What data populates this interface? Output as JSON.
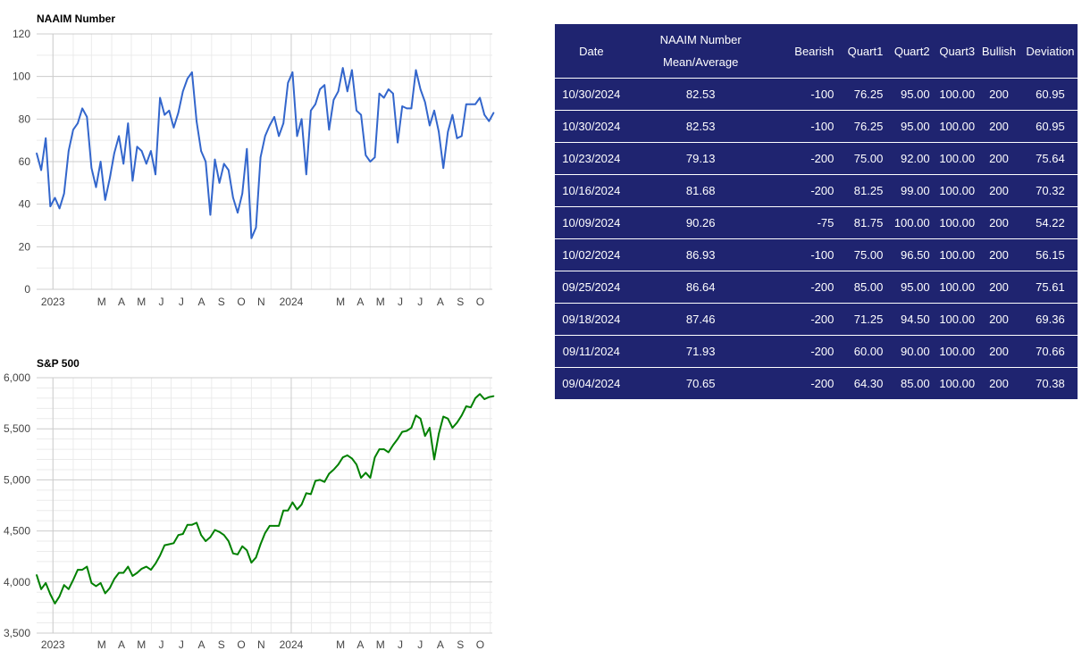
{
  "chart_data": [
    {
      "type": "line",
      "title": "NAAIM Number",
      "ylim": [
        0,
        120
      ],
      "yticks": [
        "0",
        "20",
        "40",
        "60",
        "80",
        "100",
        "120"
      ],
      "xticks": [
        {
          "label": "2023",
          "date": "2023-01-01"
        },
        {
          "label": "M",
          "date": "2023-03-01"
        },
        {
          "label": "A",
          "date": "2023-04-01"
        },
        {
          "label": "M",
          "date": "2023-05-01"
        },
        {
          "label": "J",
          "date": "2023-06-01"
        },
        {
          "label": "J",
          "date": "2023-07-01"
        },
        {
          "label": "A",
          "date": "2023-08-01"
        },
        {
          "label": "S",
          "date": "2023-09-01"
        },
        {
          "label": "O",
          "date": "2023-10-01"
        },
        {
          "label": "N",
          "date": "2023-11-01"
        },
        {
          "label": "2024",
          "date": "2024-01-01"
        },
        {
          "label": "M",
          "date": "2024-03-01"
        },
        {
          "label": "A",
          "date": "2024-04-01"
        },
        {
          "label": "M",
          "date": "2024-05-01"
        },
        {
          "label": "J",
          "date": "2024-06-01"
        },
        {
          "label": "J",
          "date": "2024-07-01"
        },
        {
          "label": "A",
          "date": "2024-08-01"
        },
        {
          "label": "S",
          "date": "2024-09-01"
        },
        {
          "label": "O",
          "date": "2024-10-01"
        }
      ],
      "xlim": [
        "2022-12-07",
        "2024-11-04"
      ],
      "grid": true,
      "color": "#3366cc",
      "series": [
        {
          "start_date": "2022-12-07",
          "step_days": 7,
          "values": [
            64,
            56,
            71,
            39,
            43,
            38,
            45,
            65,
            75,
            78,
            85,
            81,
            57,
            48,
            60,
            42,
            52,
            64,
            72,
            59,
            78,
            51,
            67,
            65,
            59,
            65,
            54,
            90,
            82,
            84,
            76,
            83,
            93,
            99,
            102,
            79,
            65,
            60,
            35,
            61,
            50,
            59,
            56,
            43,
            36,
            45,
            66,
            24,
            29,
            62,
            72,
            77,
            81,
            72,
            78,
            97,
            102,
            72,
            80,
            54,
            84,
            87,
            94,
            96,
            75,
            89,
            93,
            104,
            93,
            103,
            84,
            82,
            63,
            60,
            62,
            92,
            90,
            94,
            92,
            69,
            86,
            85,
            85,
            103,
            94,
            88,
            77,
            84,
            74,
            57,
            74,
            82,
            71,
            72,
            87,
            87,
            87,
            90,
            82,
            79,
            83
          ]
        }
      ]
    },
    {
      "type": "line",
      "title": "S&P 500",
      "ylim": [
        3500,
        6000
      ],
      "yticks": [
        "3,500",
        "4,000",
        "4,500",
        "5,000",
        "5,500",
        "6,000"
      ],
      "xticks": [
        {
          "label": "2023",
          "date": "2023-01-01"
        },
        {
          "label": "M",
          "date": "2023-03-01"
        },
        {
          "label": "A",
          "date": "2023-04-01"
        },
        {
          "label": "M",
          "date": "2023-05-01"
        },
        {
          "label": "J",
          "date": "2023-06-01"
        },
        {
          "label": "J",
          "date": "2023-07-01"
        },
        {
          "label": "A",
          "date": "2023-08-01"
        },
        {
          "label": "S",
          "date": "2023-09-01"
        },
        {
          "label": "O",
          "date": "2023-10-01"
        },
        {
          "label": "N",
          "date": "2023-11-01"
        },
        {
          "label": "2024",
          "date": "2024-01-01"
        },
        {
          "label": "M",
          "date": "2024-03-01"
        },
        {
          "label": "A",
          "date": "2024-04-01"
        },
        {
          "label": "M",
          "date": "2024-05-01"
        },
        {
          "label": "J",
          "date": "2024-06-01"
        },
        {
          "label": "J",
          "date": "2024-07-01"
        },
        {
          "label": "A",
          "date": "2024-08-01"
        },
        {
          "label": "S",
          "date": "2024-09-01"
        },
        {
          "label": "O",
          "date": "2024-10-01"
        }
      ],
      "xlim": [
        "2022-12-07",
        "2024-11-04"
      ],
      "grid": true,
      "color": "#008000",
      "series": [
        {
          "start_date": "2022-12-07",
          "step_days": 7,
          "values": [
            4070,
            3930,
            3990,
            3880,
            3790,
            3860,
            3970,
            3930,
            4020,
            4120,
            4120,
            4150,
            3990,
            3960,
            3990,
            3890,
            3940,
            4030,
            4090,
            4090,
            4150,
            4060,
            4090,
            4130,
            4150,
            4120,
            4180,
            4260,
            4360,
            4370,
            4380,
            4460,
            4470,
            4560,
            4560,
            4580,
            4460,
            4400,
            4440,
            4510,
            4490,
            4460,
            4400,
            4280,
            4270,
            4350,
            4310,
            4190,
            4240,
            4370,
            4480,
            4550,
            4550,
            4550,
            4700,
            4700,
            4780,
            4710,
            4760,
            4870,
            4860,
            4990,
            5000,
            4980,
            5060,
            5100,
            5150,
            5220,
            5240,
            5210,
            5150,
            5020,
            5070,
            5020,
            5220,
            5300,
            5300,
            5270,
            5340,
            5400,
            5470,
            5480,
            5510,
            5630,
            5600,
            5430,
            5510,
            5200,
            5450,
            5620,
            5600,
            5510,
            5560,
            5630,
            5720,
            5710,
            5800,
            5840,
            5790,
            5810,
            5820
          ]
        }
      ]
    }
  ],
  "table": {
    "headers": {
      "date": "Date",
      "mean_line1": "NAAIM Number",
      "mean_line2": "Mean/Average",
      "bearish": "Bearish",
      "q1": "Quart1",
      "q2": "Quart2",
      "q3": "Quart3",
      "bullish": "Bullish",
      "deviation": "Deviation"
    },
    "rows": [
      {
        "date": "10/30/2024",
        "mean": "82.53",
        "bearish": "-100",
        "q1": "76.25",
        "q2": "95.00",
        "q3": "100.00",
        "bullish": "200",
        "deviation": "60.95"
      },
      {
        "date": "10/30/2024",
        "mean": "82.53",
        "bearish": "-100",
        "q1": "76.25",
        "q2": "95.00",
        "q3": "100.00",
        "bullish": "200",
        "deviation": "60.95"
      },
      {
        "date": "10/23/2024",
        "mean": "79.13",
        "bearish": "-200",
        "q1": "75.00",
        "q2": "92.00",
        "q3": "100.00",
        "bullish": "200",
        "deviation": "75.64"
      },
      {
        "date": "10/16/2024",
        "mean": "81.68",
        "bearish": "-200",
        "q1": "81.25",
        "q2": "99.00",
        "q3": "100.00",
        "bullish": "200",
        "deviation": "70.32"
      },
      {
        "date": "10/09/2024",
        "mean": "90.26",
        "bearish": "-75",
        "q1": "81.75",
        "q2": "100.00",
        "q3": "100.00",
        "bullish": "200",
        "deviation": "54.22"
      },
      {
        "date": "10/02/2024",
        "mean": "86.93",
        "bearish": "-100",
        "q1": "75.00",
        "q2": "96.50",
        "q3": "100.00",
        "bullish": "200",
        "deviation": "56.15"
      },
      {
        "date": "09/25/2024",
        "mean": "86.64",
        "bearish": "-200",
        "q1": "85.00",
        "q2": "95.00",
        "q3": "100.00",
        "bullish": "200",
        "deviation": "75.61"
      },
      {
        "date": "09/18/2024",
        "mean": "87.46",
        "bearish": "-200",
        "q1": "71.25",
        "q2": "94.50",
        "q3": "100.00",
        "bullish": "200",
        "deviation": "69.36"
      },
      {
        "date": "09/11/2024",
        "mean": "71.93",
        "bearish": "-200",
        "q1": "60.00",
        "q2": "90.00",
        "q3": "100.00",
        "bullish": "200",
        "deviation": "70.66"
      },
      {
        "date": "09/04/2024",
        "mean": "70.65",
        "bearish": "-200",
        "q1": "64.30",
        "q2": "85.00",
        "q3": "100.00",
        "bullish": "200",
        "deviation": "70.38"
      }
    ]
  }
}
